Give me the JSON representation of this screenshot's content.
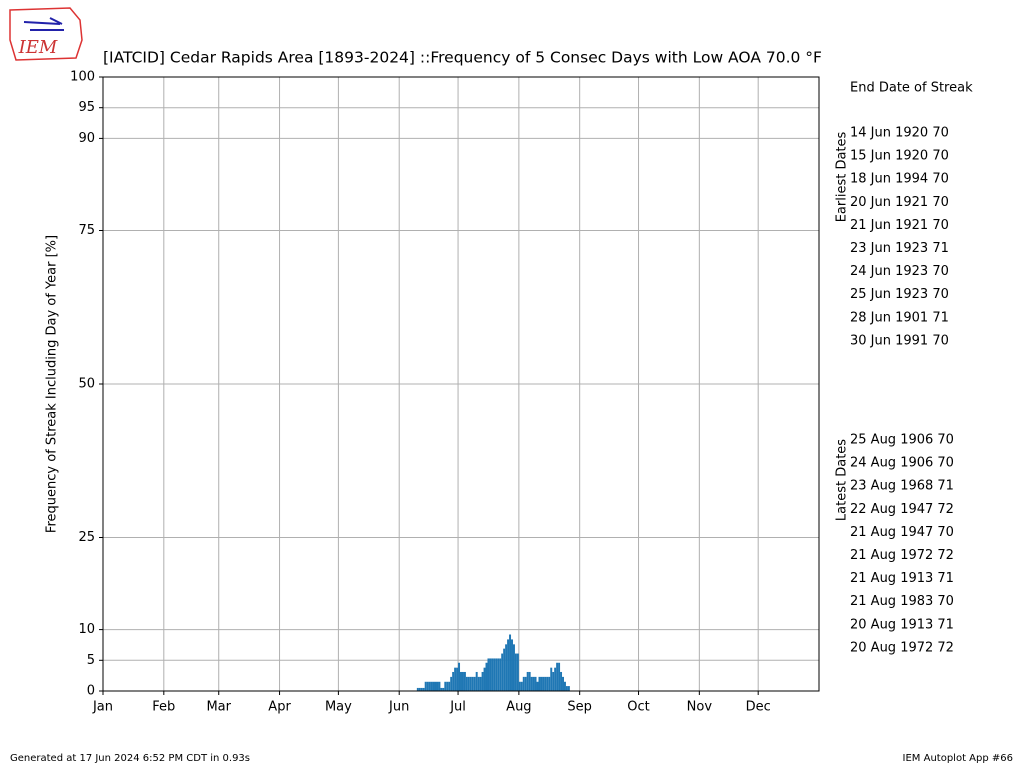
{
  "logo_text": "IEM",
  "chart_data": {
    "type": "bar",
    "title": "[IATCID] Cedar Rapids Area [1893-2024] ::Frequency of 5 Consec Days with Low AOA 70.0 °F",
    "y_label": "Frequency of Streak Including Day of Year [%]",
    "color": "#1f77b4",
    "grid": true,
    "xlim": [
      1,
      366
    ],
    "xticks": [
      {
        "value": 1,
        "label": "Jan"
      },
      {
        "value": 32,
        "label": "Feb"
      },
      {
        "value": 60,
        "label": "Mar"
      },
      {
        "value": 91,
        "label": "Apr"
      },
      {
        "value": 121,
        "label": "May"
      },
      {
        "value": 152,
        "label": "Jun"
      },
      {
        "value": 182,
        "label": "Jul"
      },
      {
        "value": 213,
        "label": "Aug"
      },
      {
        "value": 244,
        "label": "Sep"
      },
      {
        "value": 274,
        "label": "Oct"
      },
      {
        "value": 305,
        "label": "Nov"
      },
      {
        "value": 335,
        "label": "Dec"
      }
    ],
    "ylim": [
      0,
      100
    ],
    "yticks": [
      0,
      5,
      10,
      25,
      50,
      75,
      90,
      95,
      100
    ],
    "x": [
      161,
      162,
      163,
      164,
      165,
      166,
      167,
      168,
      169,
      170,
      171,
      172,
      173,
      174,
      175,
      176,
      177,
      178,
      179,
      180,
      181,
      182,
      183,
      184,
      185,
      186,
      187,
      188,
      189,
      190,
      191,
      192,
      193,
      194,
      195,
      196,
      197,
      198,
      199,
      200,
      201,
      202,
      203,
      204,
      205,
      206,
      207,
      208,
      209,
      210,
      211,
      212,
      213,
      214,
      215,
      216,
      217,
      218,
      219,
      220,
      221,
      222,
      223,
      224,
      225,
      226,
      227,
      228,
      229,
      230,
      231,
      232,
      233,
      234,
      235,
      236,
      237,
      238
    ],
    "values": [
      0.5,
      0.5,
      0.5,
      0.5,
      1.5,
      1.5,
      1.5,
      1.5,
      1.5,
      1.5,
      1.5,
      1.5,
      0.5,
      0.5,
      1.5,
      1.5,
      1.5,
      2.3,
      3.1,
      3.8,
      3.8,
      4.6,
      3.1,
      3.1,
      3.1,
      2.3,
      2.3,
      2.3,
      2.3,
      2.3,
      3.1,
      2.3,
      2.3,
      3.1,
      3.8,
      4.6,
      5.3,
      5.3,
      5.3,
      5.3,
      5.3,
      5.3,
      5.3,
      6.1,
      6.9,
      7.6,
      8.4,
      9.2,
      8.4,
      7.6,
      6.1,
      6.1,
      1.5,
      1.5,
      2.3,
      2.3,
      3.1,
      3.1,
      2.3,
      2.3,
      2.3,
      1.5,
      2.3,
      2.3,
      2.3,
      2.3,
      2.3,
      2.3,
      3.8,
      3.1,
      3.8,
      4.6,
      4.6,
      3.1,
      2.3,
      1.5,
      0.8,
      0.8
    ],
    "side_title": "End Date of Streak",
    "earliest_label": "Earliest Dates",
    "earliest": [
      "14 Jun 1920 70",
      "15 Jun 1920 70",
      "18 Jun 1994 70",
      "20 Jun 1921 70",
      "21 Jun 1921 70",
      "23 Jun 1923 71",
      "24 Jun 1923 70",
      "25 Jun 1923 70",
      "28 Jun 1901 71",
      "30 Jun 1991 70"
    ],
    "latest_label": "Latest Dates",
    "latest": [
      "25 Aug 1906 70",
      "24 Aug 1906 70",
      "23 Aug 1968 71",
      "22 Aug 1947 72",
      "21 Aug 1947 70",
      "21 Aug 1972 72",
      "21 Aug 1913 71",
      "21 Aug 1983 70",
      "20 Aug 1913 71",
      "20 Aug 1972 72"
    ],
    "footer_left": "Generated at 17 Jun 2024 6:52 PM CDT in 0.93s",
    "footer_right": "IEM Autoplot App #66"
  }
}
